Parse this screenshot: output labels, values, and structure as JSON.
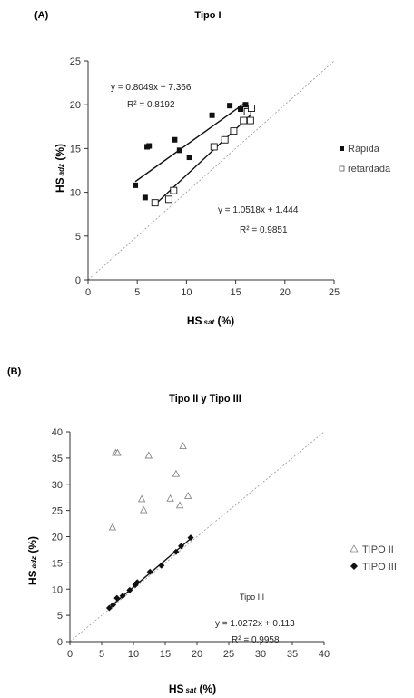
{
  "panels": [
    {
      "label": "(A)",
      "title": "Tipo I",
      "xlabel_main": "HS",
      "xlabel_sub": "sat",
      "xlabel_unit": " (%)",
      "ylabel_main": "HS",
      "ylabel_sub": "adz",
      "ylabel_unit": " (%)",
      "eq1_line1": "y = 0.8049x + 7.366",
      "eq1_line2": "R² = 0.8192",
      "eq2_line1": "y = 1.0518x + 1.444",
      "eq2_line2": "R² = 0.9851",
      "legend": [
        "Rápida",
        "retardada"
      ]
    },
    {
      "label": "(B)",
      "title": "Tipo II y Tipo III",
      "xlabel_main": "HS",
      "xlabel_sub": "sat",
      "xlabel_unit": " (%)",
      "ylabel_main": "HS",
      "ylabel_sub": "adz",
      "ylabel_unit": " (%)",
      "annot_title": "Tipo III",
      "eq_line1": "y = 1.0272x + 0.113",
      "eq_line2": "R² = 0.9958",
      "legend": [
        "TIPO II",
        "TIPO III"
      ]
    }
  ],
  "chart_data": [
    {
      "type": "scatter",
      "title": "Tipo I",
      "xlabel": "HS sat (%)",
      "ylabel": "HS adz (%)",
      "xlim": [
        0,
        25
      ],
      "ylim": [
        0,
        25
      ],
      "xticks": [
        0,
        5,
        10,
        15,
        20,
        25
      ],
      "yticks": [
        0,
        5,
        10,
        15,
        20,
        25
      ],
      "reference_line": "1:1",
      "series": [
        {
          "name": "Rápida",
          "marker": "filled-square",
          "color": "#111111",
          "points": [
            [
              4.8,
              10.8
            ],
            [
              5.8,
              9.4
            ],
            [
              6.0,
              15.2
            ],
            [
              6.2,
              15.3
            ],
            [
              8.8,
              16.0
            ],
            [
              9.3,
              14.8
            ],
            [
              10.3,
              14.0
            ],
            [
              12.6,
              18.8
            ],
            [
              14.4,
              19.9
            ],
            [
              15.5,
              19.5
            ],
            [
              16.0,
              20.0
            ]
          ],
          "fit": {
            "slope": 0.8049,
            "intercept": 7.366,
            "r2": 0.8192,
            "x_range": [
              4.8,
              16.0
            ]
          }
        },
        {
          "name": "retardada",
          "marker": "open-square",
          "color": "#111111",
          "points": [
            [
              6.8,
              8.8
            ],
            [
              8.2,
              9.2
            ],
            [
              8.7,
              10.2
            ],
            [
              12.8,
              15.2
            ],
            [
              13.9,
              16.0
            ],
            [
              14.8,
              17.0
            ],
            [
              15.8,
              18.2
            ],
            [
              16.2,
              19.2
            ],
            [
              16.5,
              18.2
            ],
            [
              16.6,
              19.6
            ]
          ],
          "fit": {
            "slope": 1.0518,
            "intercept": 1.444,
            "r2": 0.9851,
            "x_range": [
              6.8,
              16.6
            ]
          }
        }
      ]
    },
    {
      "type": "scatter",
      "title": "Tipo II y Tipo III",
      "xlabel": "HS sat (%)",
      "ylabel": "HS adz (%)",
      "xlim": [
        0,
        40
      ],
      "ylim": [
        0,
        40
      ],
      "xticks": [
        0,
        5,
        10,
        15,
        20,
        25,
        30,
        35,
        40
      ],
      "yticks": [
        0,
        5,
        10,
        15,
        20,
        25,
        30,
        35,
        40
      ],
      "reference_line": "1:1",
      "series": [
        {
          "name": "TIPO II",
          "marker": "open-triangle",
          "color": "#888888",
          "points": [
            [
              6.7,
              21.8
            ],
            [
              7.2,
              36.0
            ],
            [
              7.5,
              36.0
            ],
            [
              11.3,
              27.2
            ],
            [
              11.6,
              25.1
            ],
            [
              12.4,
              35.5
            ],
            [
              15.8,
              27.3
            ],
            [
              16.7,
              32.0
            ],
            [
              17.3,
              26.0
            ],
            [
              17.8,
              37.3
            ],
            [
              18.6,
              27.8
            ]
          ]
        },
        {
          "name": "TIPO III",
          "marker": "filled-diamond",
          "color": "#111111",
          "points": [
            [
              6.2,
              6.4
            ],
            [
              6.8,
              7.0
            ],
            [
              7.4,
              8.3
            ],
            [
              8.3,
              8.7
            ],
            [
              9.4,
              9.8
            ],
            [
              10.3,
              10.8
            ],
            [
              10.6,
              11.3
            ],
            [
              12.6,
              13.3
            ],
            [
              14.4,
              14.5
            ],
            [
              16.7,
              17.1
            ],
            [
              17.5,
              18.2
            ],
            [
              19.0,
              19.8
            ]
          ],
          "fit": {
            "slope": 1.0272,
            "intercept": 0.113,
            "r2": 0.9958,
            "x_range": [
              6.2,
              19.0
            ]
          }
        }
      ]
    }
  ]
}
